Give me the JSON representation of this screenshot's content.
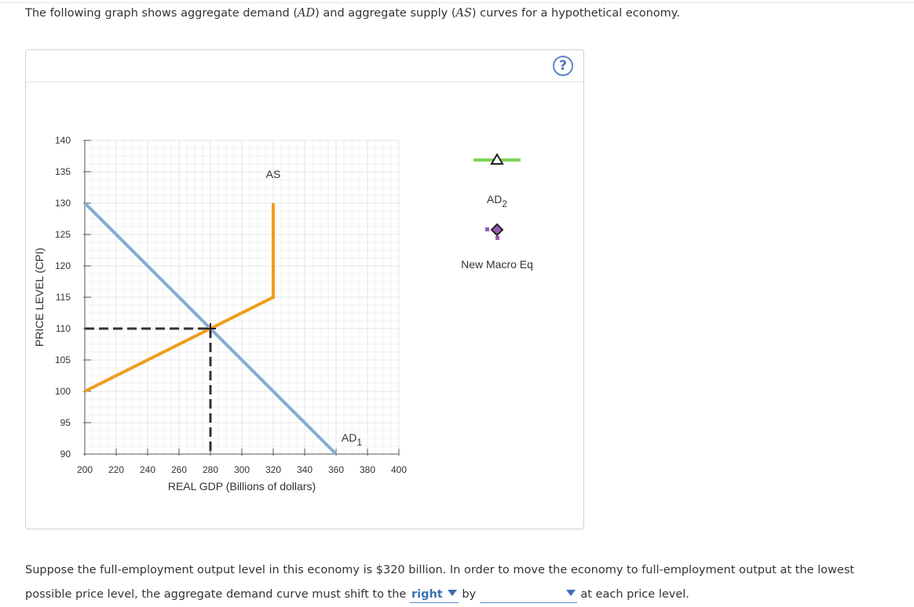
{
  "intro": {
    "part1": "The following graph shows aggregate demand (",
    "ad": "AD",
    "part2": ") and aggregate supply (",
    "as": "AS",
    "part3": ") curves for a hypothetical economy."
  },
  "help_label": "?",
  "chart_data": {
    "type": "line",
    "xlabel": "REAL GDP (Billions of dollars)",
    "ylabel": "PRICE LEVEL (CPI)",
    "xlim": [
      200,
      400
    ],
    "ylim": [
      90,
      140
    ],
    "x_ticks": [
      200,
      220,
      240,
      260,
      280,
      300,
      320,
      340,
      360,
      380,
      400
    ],
    "y_ticks": [
      90,
      95,
      100,
      105,
      110,
      115,
      120,
      125,
      130,
      135,
      140
    ],
    "grid": true,
    "series": [
      {
        "name": "AD",
        "subscript": "1",
        "color": "#84acd6",
        "points": [
          [
            200,
            130
          ],
          [
            360,
            90
          ]
        ],
        "label_at": [
          370,
          92
        ]
      },
      {
        "name": "AS",
        "subscript": "",
        "color": "#f39c1f",
        "points": [
          [
            200,
            100
          ],
          [
            320,
            115
          ],
          [
            320,
            130
          ]
        ],
        "label_at": [
          320,
          134
        ]
      }
    ],
    "equilibrium": {
      "x": 280,
      "y": 110,
      "guide_color": "#333333"
    },
    "legend_placement": "right",
    "legend": [
      {
        "name": "AD",
        "subscript": "2",
        "symbol": "line-triangle",
        "color": "#7ed35b"
      },
      {
        "name": "New Macro Eq",
        "subscript": "",
        "symbol": "diamond",
        "color": "#9b59b6"
      }
    ]
  },
  "question": {
    "text1": "Suppose the full-employment output level in this economy is $320 billion. In order to move the economy to full-employment output at the lowest possible price level, the aggregate demand curve must shift to the",
    "dropdown1_value": "right",
    "text2": "by",
    "dropdown2_value": "",
    "text3": "at each price level."
  }
}
